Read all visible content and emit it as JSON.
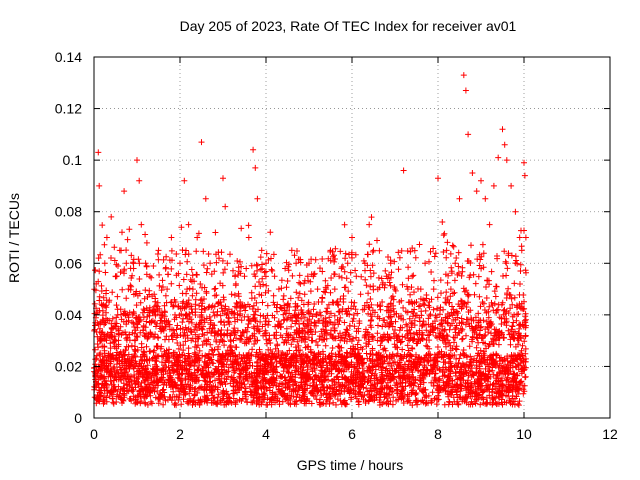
{
  "chart_data": {
    "type": "scatter",
    "title": "Day 205 of 2023, Rate Of TEC Index for receiver av01",
    "xlabel": "GPS time / hours",
    "ylabel": "ROTI / TECUs",
    "xlim": [
      0,
      12
    ],
    "ylim": [
      0,
      0.14
    ],
    "x_ticks": [
      0,
      2,
      4,
      6,
      8,
      10,
      12
    ],
    "y_ticks": [
      0,
      0.02,
      0.04,
      0.06,
      0.08,
      0.1,
      0.12,
      0.14
    ],
    "x_tick_labels": [
      "0",
      "2",
      "4",
      "6",
      "8",
      "10",
      "12"
    ],
    "y_tick_labels": [
      "0",
      "0.02",
      "0.04",
      "0.06",
      "0.08",
      "0.1",
      "0.12",
      "0.14"
    ],
    "grid": true,
    "marker": "+",
    "marker_color": "#ff0000",
    "series": [
      {
        "x": [
          0.02,
          0.05,
          0.1,
          0.12,
          0.15,
          0.2,
          0.25,
          0.3,
          0.35,
          0.4,
          0.45,
          0.5,
          0.55,
          0.6,
          0.65,
          0.7,
          0.75,
          0.8,
          0.85,
          0.9,
          0.95,
          1.0,
          1.05,
          1.1,
          1.2,
          1.3,
          1.4,
          1.5,
          1.6,
          1.7,
          1.8,
          1.9,
          2.0,
          2.1,
          2.2,
          2.3,
          2.4,
          2.5,
          2.6,
          2.7,
          2.8,
          2.9,
          3.0,
          3.05,
          3.1,
          3.2,
          3.3,
          3.4,
          3.5,
          3.6,
          3.7,
          3.75,
          3.8,
          3.9,
          4.0,
          4.1,
          4.2,
          4.3,
          4.4,
          4.5,
          4.6,
          4.7,
          4.8,
          4.9,
          5.0,
          5.1,
          5.2,
          5.3,
          5.4,
          5.5,
          5.6,
          5.7,
          5.8,
          5.9,
          6.0,
          6.1,
          6.2,
          6.3,
          6.4,
          6.5,
          6.6,
          6.7,
          6.8,
          6.9,
          7.0,
          7.1,
          7.2,
          7.3,
          7.4,
          7.5,
          7.6,
          7.7,
          7.8,
          7.9,
          8.0,
          8.1,
          8.2,
          8.3,
          8.4,
          8.5,
          8.6,
          8.65,
          8.7,
          8.8,
          8.9,
          9.0,
          9.1,
          9.2,
          9.3,
          9.4,
          9.5,
          9.55,
          9.6,
          9.7,
          9.8,
          9.9,
          9.95,
          10.0,
          10.02
        ],
        "y": [
          0.012,
          0.052,
          0.103,
          0.09,
          0.03,
          0.038,
          0.06,
          0.07,
          0.045,
          0.078,
          0.035,
          0.055,
          0.04,
          0.065,
          0.072,
          0.088,
          0.06,
          0.05,
          0.058,
          0.04,
          0.03,
          0.1,
          0.092,
          0.075,
          0.06,
          0.055,
          0.048,
          0.065,
          0.04,
          0.05,
          0.07,
          0.045,
          0.06,
          0.092,
          0.075,
          0.05,
          0.07,
          0.107,
          0.085,
          0.06,
          0.05,
          0.045,
          0.093,
          0.082,
          0.06,
          0.048,
          0.052,
          0.045,
          0.055,
          0.07,
          0.104,
          0.097,
          0.085,
          0.065,
          0.06,
          0.072,
          0.055,
          0.05,
          0.046,
          0.044,
          0.065,
          0.06,
          0.052,
          0.048,
          0.06,
          0.055,
          0.05,
          0.045,
          0.05,
          0.065,
          0.05,
          0.055,
          0.045,
          0.06,
          0.07,
          0.055,
          0.048,
          0.06,
          0.075,
          0.065,
          0.05,
          0.045,
          0.055,
          0.06,
          0.05,
          0.045,
          0.096,
          0.05,
          0.055,
          0.045,
          0.05,
          0.06,
          0.045,
          0.05,
          0.093,
          0.076,
          0.065,
          0.05,
          0.06,
          0.085,
          0.133,
          0.127,
          0.11,
          0.095,
          0.088,
          0.092,
          0.085,
          0.075,
          0.09,
          0.101,
          0.112,
          0.106,
          0.1,
          0.09,
          0.08,
          0.07,
          0.065,
          0.099,
          0.094
        ],
        "envelope": "dense cloud of points between 0.005 and ~0.05 across 0–10 h; data absent after 10.05 h"
      }
    ]
  }
}
